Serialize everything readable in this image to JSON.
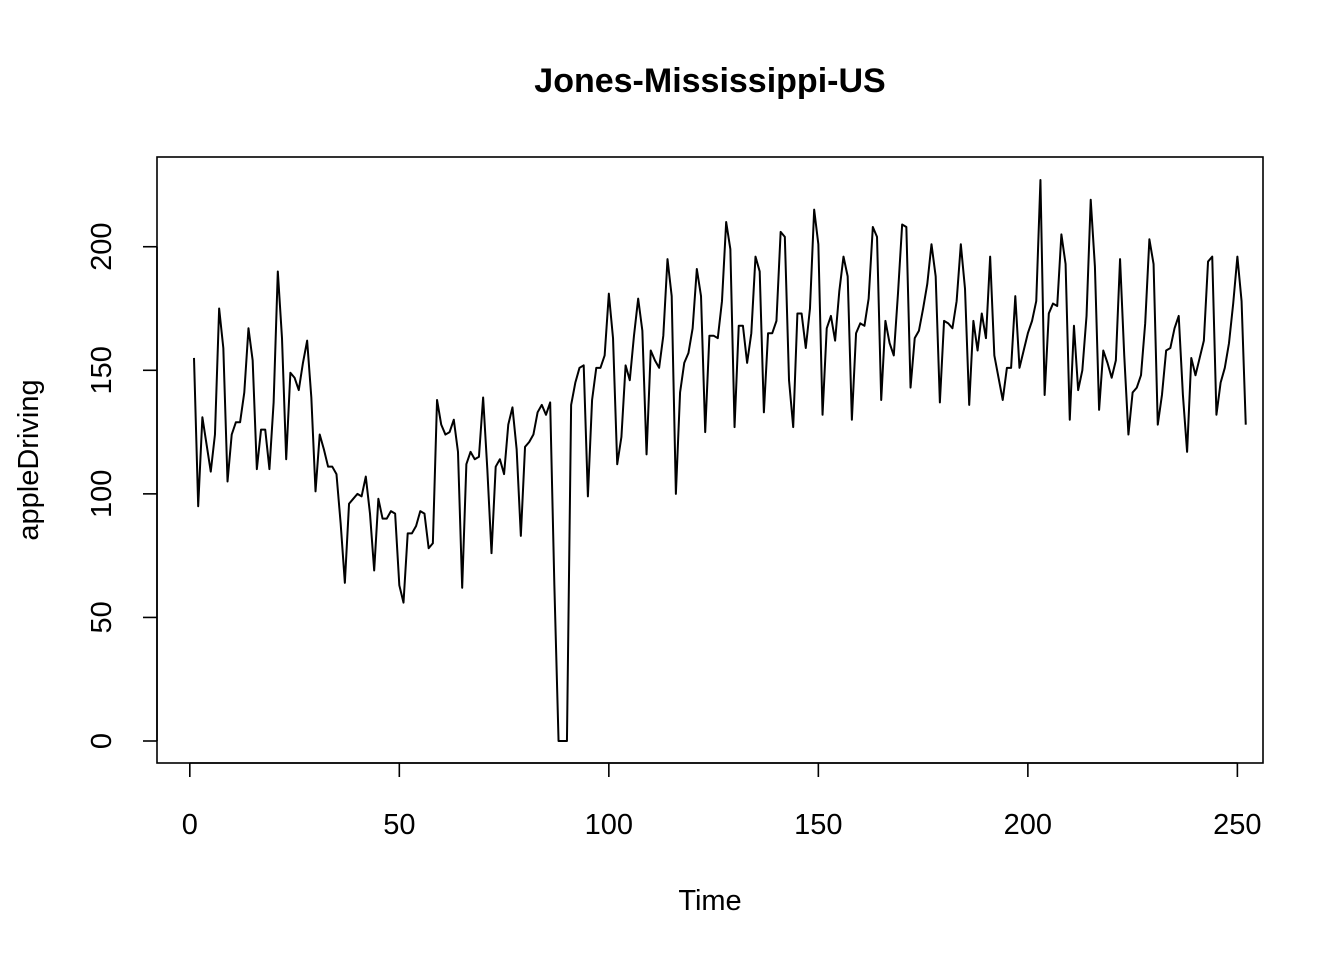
{
  "chart_data": {
    "type": "line",
    "title": "Jones-Mississippi-US",
    "xlabel": "Time",
    "ylabel": "appleDriving",
    "xlim": [
      1,
      248
    ],
    "ylim": [
      0,
      227
    ],
    "xticks": [
      0,
      50,
      100,
      150,
      200,
      250
    ],
    "yticks": [
      0,
      50,
      100,
      150,
      200
    ],
    "grid": false,
    "legend": "none",
    "series": [
      {
        "x_start": 1,
        "color": "#000000",
        "values": [
          155,
          95,
          131,
          120,
          109,
          124,
          175,
          159,
          105,
          124,
          129,
          129,
          141,
          167,
          154,
          110,
          126,
          126,
          110,
          137,
          190,
          163,
          114,
          149,
          147,
          142,
          153,
          162,
          139,
          101,
          124,
          118,
          111,
          111,
          108,
          88,
          64,
          96,
          98,
          100,
          99,
          107,
          92,
          69,
          98,
          90,
          90,
          93,
          92,
          63,
          56,
          84,
          84,
          87,
          93,
          92,
          78,
          80,
          138,
          128,
          124,
          125,
          130,
          117,
          62,
          112,
          117,
          114,
          115,
          139,
          110,
          76,
          111,
          114,
          108,
          128,
          135,
          118,
          83,
          119,
          121,
          124,
          133,
          136,
          132,
          137,
          63,
          0,
          0,
          0,
          136,
          145,
          151,
          152,
          99,
          138,
          151,
          151,
          156,
          181,
          163,
          112,
          123,
          152,
          146,
          164,
          179,
          166,
          116,
          158,
          154,
          151,
          164,
          195,
          180,
          100,
          141,
          153,
          157,
          167,
          191,
          180,
          125,
          164,
          164,
          163,
          178,
          210,
          199,
          127,
          168,
          168,
          153,
          165,
          196,
          190,
          133,
          165,
          165,
          170,
          206,
          204,
          146,
          127,
          173,
          173,
          159,
          175,
          215,
          201,
          132,
          167,
          172,
          162,
          182,
          196,
          188,
          130,
          165,
          169,
          168,
          179,
          208,
          204,
          138,
          170,
          161,
          156,
          181,
          209,
          208,
          143,
          163,
          166,
          175,
          185,
          201,
          188,
          137,
          170,
          169,
          167,
          178,
          201,
          183,
          136,
          170,
          158,
          173,
          163,
          196,
          156,
          147,
          138,
          151,
          151,
          180,
          151,
          158,
          165,
          170,
          178,
          227,
          140,
          173,
          177,
          176,
          205,
          193,
          130,
          168,
          142,
          150,
          172,
          219,
          192,
          134,
          158,
          153,
          147,
          154,
          195,
          156,
          124,
          141,
          143,
          148,
          169,
          203,
          193,
          128,
          140,
          158,
          159,
          167,
          172,
          140,
          117,
          155,
          148,
          155,
          162,
          194,
          196,
          132,
          145,
          151,
          161,
          177,
          196,
          178,
          128
        ]
      }
    ]
  }
}
